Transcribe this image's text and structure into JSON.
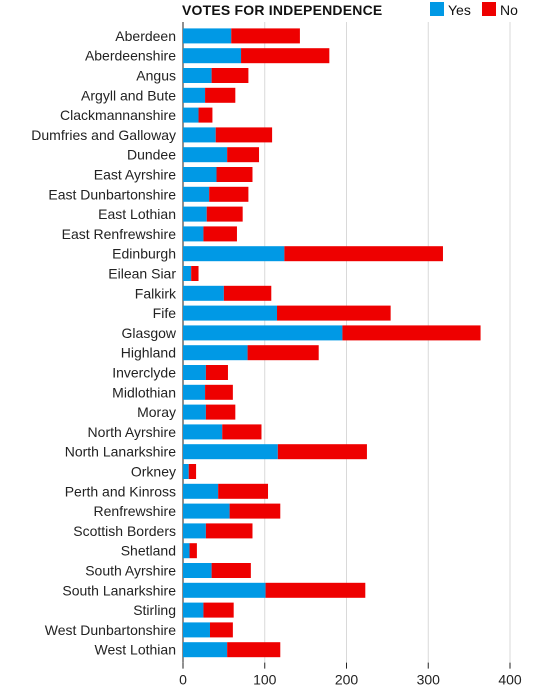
{
  "chart_data": {
    "type": "bar",
    "orientation": "horizontal",
    "stacked": true,
    "title": "VOTES FOR INDEPENDENCE",
    "legend_position": "top-right",
    "grid": true,
    "xlim": [
      0,
      400
    ],
    "xticks": [
      0,
      100,
      200,
      300,
      400
    ],
    "categories": [
      "Aberdeen",
      "Aberdeenshire",
      "Angus",
      "Argyll and Bute",
      "Clackmannanshire",
      "Dumfries and Galloway",
      "Dundee",
      "East Ayrshire",
      "East Dunbartonshire",
      "East Lothian",
      "East Renfrewshire",
      "Edinburgh",
      "Eilean Siar",
      "Falkirk",
      "Fife",
      "Glasgow",
      "Highland",
      "Inverclyde",
      "Midlothian",
      "Moray",
      "North Ayrshire",
      "North Lanarkshire",
      "Orkney",
      "Perth and Kinross",
      "Renfrewshire",
      "Scottish Borders",
      "Shetland",
      "South Ayrshire",
      "South Lanarkshire",
      "Stirling",
      "West Dunbartonshire",
      "West Lothian"
    ],
    "series": [
      {
        "name": "Yes",
        "color": "#0099e5",
        "values": [
          59,
          71,
          35,
          27,
          19,
          40,
          54,
          41,
          32,
          29,
          25,
          124,
          10,
          50,
          115,
          195,
          79,
          28,
          27,
          28,
          48,
          116,
          7,
          43,
          57,
          28,
          8,
          35,
          101,
          25,
          33,
          54
        ]
      },
      {
        "name": "No",
        "color": "#ee0000",
        "values": [
          84,
          108,
          45,
          37,
          17,
          69,
          39,
          44,
          48,
          44,
          41,
          194,
          9,
          58,
          139,
          169,
          87,
          27,
          34,
          36,
          48,
          109,
          9,
          61,
          62,
          57,
          9,
          48,
          122,
          37,
          28,
          65
        ]
      }
    ]
  }
}
